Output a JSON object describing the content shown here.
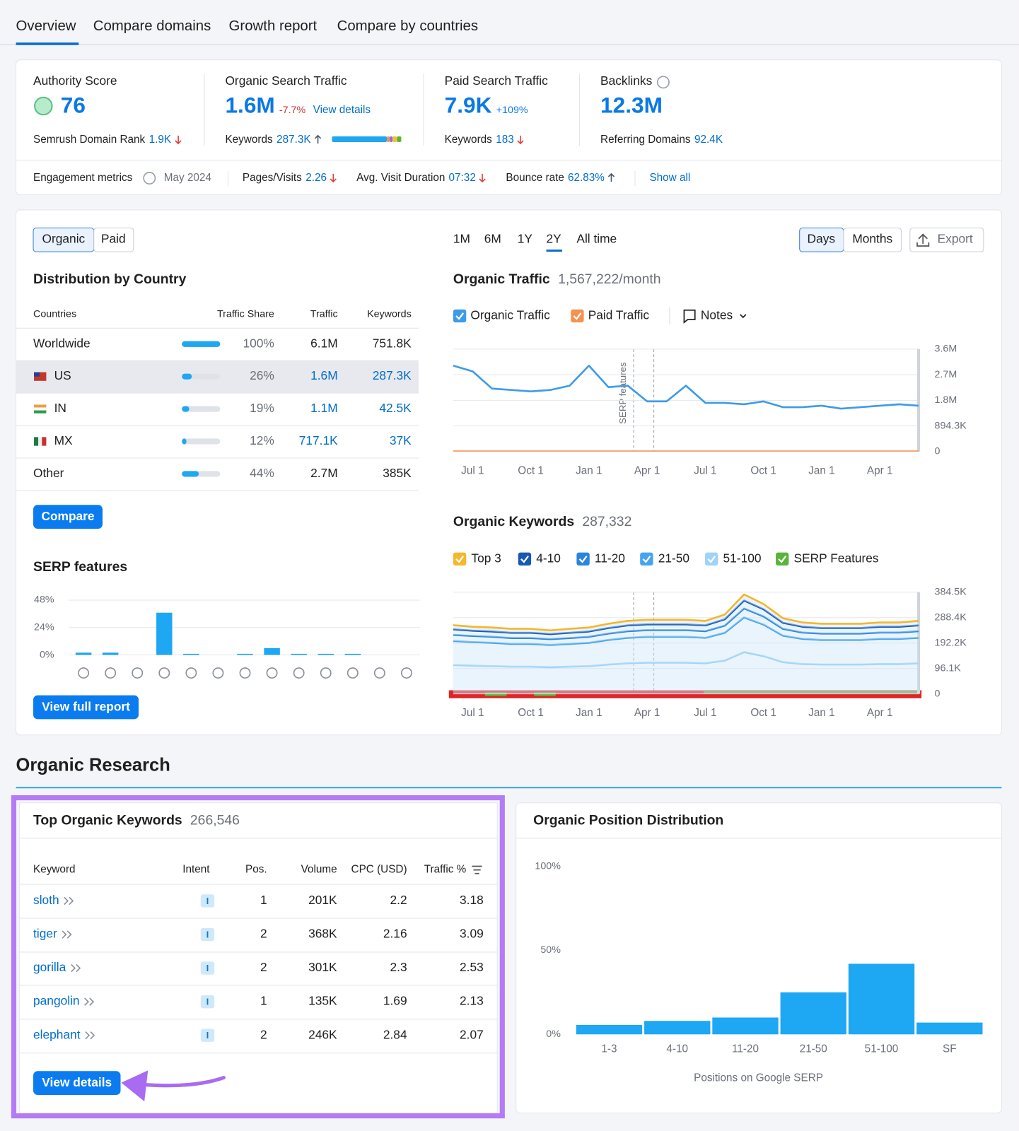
{
  "tabs": [
    "Overview",
    "Compare domains",
    "Growth report",
    "Compare by countries"
  ],
  "metrics": {
    "authority": {
      "label": "Authority Score",
      "value": 76,
      "rank_label": "Semrush Domain Rank",
      "rank": "1.9K",
      "rank_trend": "down"
    },
    "organic": {
      "label": "Organic Search Traffic",
      "value": "1.6M",
      "change": "-7.7%",
      "link": "View details",
      "keywords_label": "Keywords",
      "keywords": "287.3K",
      "keywords_trend": "up"
    },
    "paid": {
      "label": "Paid Search Traffic",
      "value": "7.9K",
      "change": "+109%",
      "keywords_label": "Keywords",
      "keywords": 183,
      "keywords_trend": "down"
    },
    "backlinks": {
      "label": "Backlinks",
      "value": "12.3M",
      "domains_label": "Referring Domains",
      "domains": "92.4K"
    }
  },
  "engagement": {
    "label": "Engagement metrics",
    "date": "May 2024",
    "items": [
      {
        "label": "Pages/Visits",
        "value": 2.26,
        "trend": "down"
      },
      {
        "label": "Avg. Visit Duration",
        "value": "07:32",
        "trend": "down"
      },
      {
        "label": "Bounce rate",
        "value": "62.83%",
        "trend": "up"
      }
    ],
    "show_all": "Show all"
  },
  "distribution": {
    "toggle": [
      "Organic",
      "Paid"
    ],
    "title": "Distribution by Country",
    "columns": [
      "Countries",
      "Traffic Share",
      "Traffic",
      "Keywords"
    ],
    "rows": [
      {
        "country": "Worldwide",
        "share": 100,
        "share_label": "100%",
        "traffic": "6.1M",
        "keywords": "751.8K"
      },
      {
        "country": "US",
        "share": 26,
        "share_label": "26%",
        "traffic": "1.6M",
        "keywords": "287.3K"
      },
      {
        "country": "IN",
        "share": 19,
        "share_label": "19%",
        "traffic": "1.1M",
        "keywords": "42.5K"
      },
      {
        "country": "MX",
        "share": 12,
        "share_label": "12%",
        "traffic": "717.1K",
        "keywords": "37K"
      },
      {
        "country": "Other",
        "share": 44,
        "share_label": "44%",
        "traffic": "2.7M",
        "keywords": "385K"
      }
    ],
    "button": "Compare",
    "report_button": "View full report"
  },
  "controls": {
    "ranges": [
      "1M",
      "6M",
      "1Y",
      "2Y",
      "All time"
    ],
    "views": [
      "Days",
      "Months"
    ],
    "export": "Export"
  },
  "section": "Organic Research",
  "keywords": {
    "title": "Top Organic Keywords",
    "count": "266,546",
    "columns": [
      "Keyword",
      "Intent",
      "Pos.",
      "Volume",
      "CPC (USD)",
      "Traffic %"
    ],
    "rows": [
      [
        "sloth",
        "I",
        1,
        "201K",
        2.2,
        3.18
      ],
      [
        "tiger",
        "I",
        2,
        "368K",
        2.16,
        3.09
      ],
      [
        "gorilla",
        "I",
        2,
        "301K",
        2.3,
        2.53
      ],
      [
        "pangolin",
        "I",
        1,
        "135K",
        1.69,
        2.13
      ],
      [
        "elephant",
        "I",
        2,
        "246K",
        2.84,
        2.07
      ]
    ],
    "button": "View details"
  },
  "chart_data": [
    {
      "type": "bar",
      "title": "SERP features",
      "categories": [
        null,
        null,
        null,
        null,
        null,
        null,
        null,
        null,
        null,
        null,
        null,
        null,
        null
      ],
      "values": [
        2,
        2,
        0,
        37,
        1,
        0,
        1,
        6,
        1,
        1,
        1,
        0,
        0
      ],
      "color": "#1ea7f2",
      "ylim": [
        0,
        48
      ],
      "yticks": [
        {
          "value": 0,
          "label": "0%"
        },
        {
          "value": 24,
          "label": "24%"
        },
        {
          "value": 48,
          "label": "48%"
        }
      ],
      "grid": true
    },
    {
      "type": "line",
      "title": "Organic Traffic",
      "subtitle": "1,567,222/month",
      "categories": [
        null,
        "Jul 1",
        null,
        null,
        "Oct 1",
        null,
        null,
        "Jan 1",
        null,
        null,
        "Apr 1",
        null,
        null,
        "Jul 1",
        null,
        null,
        "Oct 1",
        null,
        null,
        "Jan 1",
        null,
        null,
        "Apr 1",
        null,
        null
      ],
      "series": [
        {
          "name": "Organic Traffic",
          "color": "#3d9be9",
          "values": [
            3000000,
            2800000,
            2200000,
            2150000,
            2100000,
            2150000,
            2300000,
            3000000,
            2250000,
            2300000,
            1750000,
            1750000,
            2300000,
            1700000,
            1700000,
            1650000,
            1750000,
            1550000,
            1550000,
            1600000,
            1500000,
            1550000,
            1600000,
            1650000,
            1600000
          ]
        },
        {
          "name": "Paid Traffic",
          "color": "#f5924f",
          "values": [
            20000,
            20000,
            20000,
            20000,
            20000,
            20000,
            20000,
            20000,
            20000,
            20000,
            20000,
            20000,
            20000,
            20000,
            20000,
            20000,
            20000,
            20000,
            20000,
            20000,
            20000,
            20000,
            20000,
            20000,
            20000
          ]
        }
      ],
      "ylim": [
        0,
        3577200
      ],
      "yticks": [
        0,
        {
          "value": 894300,
          "label": "894.3K"
        },
        {
          "value": 1788600,
          "label": "1.8M"
        },
        {
          "value": 2682900,
          "label": "2.7M"
        },
        {
          "value": 3577200,
          "label": "3.6M"
        }
      ],
      "grid": true,
      "annotation": "SERP features",
      "notes": "Notes"
    },
    {
      "type": "area",
      "stacked": true,
      "title": "Organic Keywords",
      "subtitle": "287,332",
      "categories": [
        null,
        "Jul 1",
        null,
        null,
        "Oct 1",
        null,
        null,
        "Jan 1",
        null,
        null,
        "Apr 1",
        null,
        null,
        "Jul 1",
        null,
        null,
        "Oct 1",
        null,
        null,
        "Jan 1",
        null,
        null,
        "Apr 1",
        null,
        null
      ],
      "series": [
        {
          "name": "Top 3",
          "color": "#f5b72d",
          "values": [
            16000,
            15000,
            15000,
            15000,
            15000,
            14000,
            15000,
            15000,
            16000,
            17000,
            17000,
            17000,
            17000,
            17000,
            18000,
            23000,
            20000,
            17000,
            16000,
            16000,
            16000,
            16000,
            16000,
            16000,
            17000
          ]
        },
        {
          "name": "4-10",
          "color": "#1759b5",
          "values": [
            21000,
            20000,
            20000,
            20000,
            20000,
            19000,
            20000,
            20000,
            21000,
            22000,
            22000,
            22000,
            22000,
            22000,
            24000,
            30000,
            27000,
            23000,
            22000,
            21000,
            21000,
            21000,
            22000,
            22000,
            22000
          ]
        },
        {
          "name": "11-20",
          "color": "#2a86dc",
          "values": [
            23000,
            23000,
            23000,
            22000,
            22000,
            22000,
            22000,
            23000,
            24000,
            25000,
            25000,
            25000,
            25000,
            25000,
            27000,
            34000,
            31000,
            26000,
            24000,
            24000,
            24000,
            24000,
            24000,
            24000,
            25000
          ]
        },
        {
          "name": "21-50",
          "color": "#45a4ec",
          "values": [
            91000,
            89000,
            88000,
            86000,
            86000,
            84000,
            86000,
            88000,
            93000,
            96000,
            98000,
            98000,
            98000,
            96000,
            105000,
            131000,
            119000,
            100000,
            95000,
            93000,
            93000,
            93000,
            95000,
            95000,
            96000
          ]
        },
        {
          "name": "51-100",
          "color": "#9fd3f7",
          "values": [
            109000,
            107000,
            105000,
            103000,
            103000,
            101000,
            103000,
            105000,
            111000,
            116000,
            118000,
            118000,
            118000,
            116000,
            126000,
            158000,
            143000,
            120000,
            113000,
            111000,
            111000,
            111000,
            113000,
            113000,
            116000
          ]
        }
      ],
      "extra_legend": {
        "name": "SERP Features",
        "color": "#59b53a"
      },
      "ylim": [
        0,
        384500
      ],
      "yticks": [
        0,
        {
          "value": 96100,
          "label": "96.1K"
        },
        {
          "value": 192200,
          "label": "192.2K"
        },
        {
          "value": 288400,
          "label": "288.4K"
        },
        {
          "value": 384500,
          "label": "384.5K"
        }
      ],
      "grid": true
    },
    {
      "type": "bar",
      "title": "Organic Position Distribution",
      "categories": [
        "1-3",
        "4-10",
        "11-20",
        "21-50",
        "51-100",
        "SF"
      ],
      "values": [
        5.6,
        8,
        10,
        25,
        42,
        7
      ],
      "color": "#1ea7f2",
      "ylim": [
        0,
        100
      ],
      "yticks": [
        {
          "value": 0,
          "label": "0%"
        },
        {
          "value": 50,
          "label": "50%"
        },
        {
          "value": 100,
          "label": "100%"
        }
      ],
      "xlabel": "Positions on Google SERP",
      "grid": false
    }
  ]
}
